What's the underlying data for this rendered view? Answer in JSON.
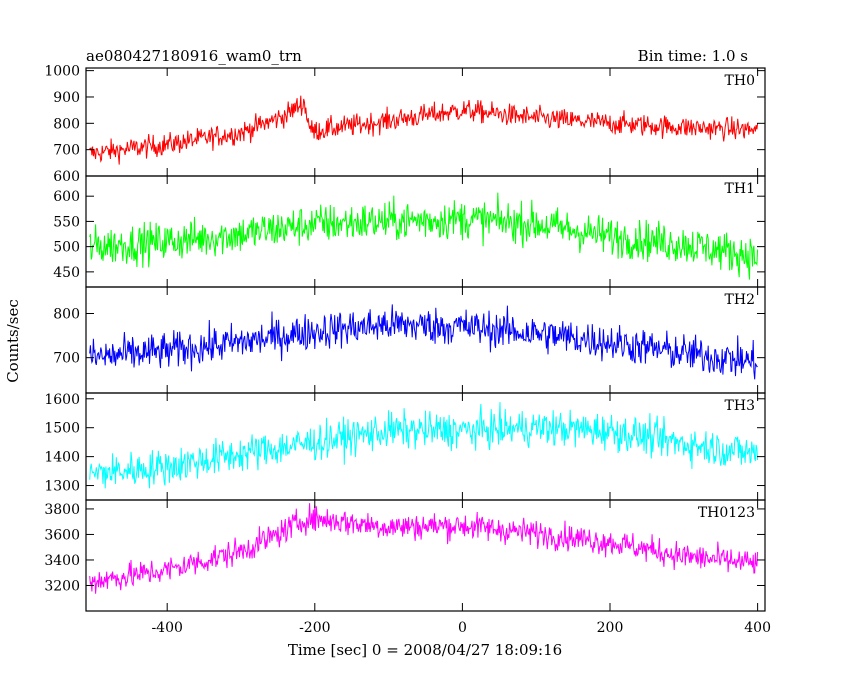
{
  "header": {
    "title": "ae080427180916_wam0_trn",
    "bin_time": "Bin time: 1.0 s"
  },
  "chart_data": {
    "type": "line",
    "xlabel": "Time [sec] 0 = 2008/04/27 18:09:16",
    "ylabel": "Counts/sec",
    "xlim": [
      -510,
      410
    ],
    "x_ticks": [
      -400,
      -200,
      0,
      200,
      400
    ],
    "bin_seconds": 1.0,
    "panels": [
      {
        "name": "TH0",
        "color": "#ff0000",
        "ylim": [
          600,
          1010
        ],
        "y_ticks": [
          600,
          700,
          800,
          900,
          1000
        ],
        "noise": 30,
        "trend_x": [
          -505,
          -400,
          -300,
          -240,
          -215,
          -205,
          -100,
          0,
          100,
          200,
          300,
          400
        ],
        "trend_y": [
          685,
          720,
          765,
          830,
          880,
          770,
          810,
          850,
          820,
          800,
          785,
          775
        ]
      },
      {
        "name": "TH1",
        "color": "#00ff00",
        "ylim": [
          420,
          640
        ],
        "y_ticks": [
          450,
          500,
          550,
          600
        ],
        "noise": 28,
        "trend_x": [
          -505,
          -400,
          -300,
          -200,
          -100,
          0,
          100,
          200,
          300,
          400
        ],
        "trend_y": [
          500,
          510,
          525,
          545,
          550,
          555,
          545,
          520,
          505,
          480
        ]
      },
      {
        "name": "TH2",
        "color": "#0000ff",
        "ylim": [
          620,
          860
        ],
        "y_ticks": [
          700,
          800
        ],
        "noise": 30,
        "trend_x": [
          -505,
          -400,
          -300,
          -200,
          -100,
          0,
          100,
          200,
          300,
          400
        ],
        "trend_y": [
          700,
          715,
          735,
          760,
          775,
          770,
          755,
          735,
          710,
          690
        ]
      },
      {
        "name": "TH3",
        "color": "#00ffff",
        "ylim": [
          1250,
          1620
        ],
        "y_ticks": [
          1300,
          1400,
          1500,
          1600
        ],
        "noise": 45,
        "trend_x": [
          -505,
          -400,
          -300,
          -200,
          -100,
          0,
          100,
          200,
          300,
          400
        ],
        "trend_y": [
          1340,
          1365,
          1410,
          1450,
          1490,
          1490,
          1500,
          1490,
          1445,
          1410
        ]
      },
      {
        "name": "TH0123",
        "color": "#ff00ff",
        "ylim": [
          3000,
          3870
        ],
        "y_ticks": [
          3200,
          3400,
          3600,
          3800
        ],
        "noise": 75,
        "trend_x": [
          -505,
          -400,
          -300,
          -250,
          -210,
          -100,
          0,
          100,
          200,
          300,
          400
        ],
        "trend_y": [
          3230,
          3320,
          3470,
          3600,
          3730,
          3660,
          3670,
          3610,
          3540,
          3430,
          3370
        ]
      }
    ]
  }
}
